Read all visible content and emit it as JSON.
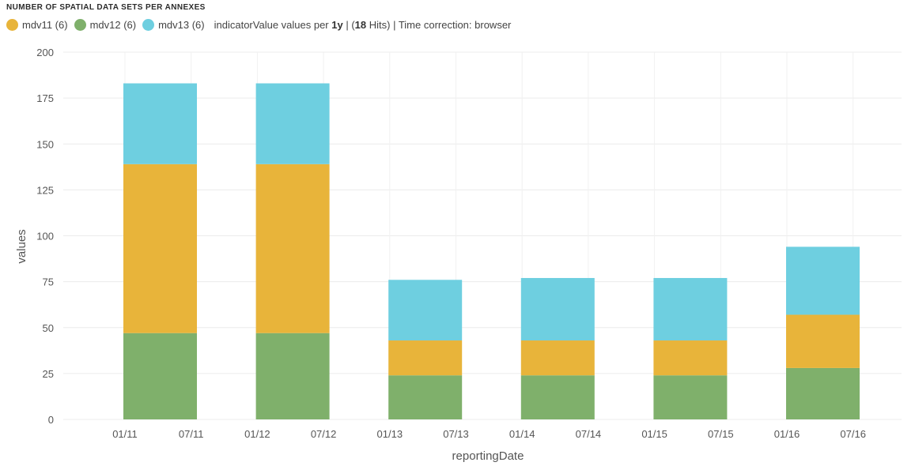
{
  "header": {
    "title": "NUMBER OF SPATIAL DATA SETS PER ANNEXES"
  },
  "legend": {
    "items": [
      {
        "label": "mdv11 (6)",
        "color": "#e8b43a"
      },
      {
        "label": "mdv12 (6)",
        "color": "#7fb06b"
      },
      {
        "label": "mdv13 (6)",
        "color": "#6ecfe0"
      }
    ],
    "meta_prefix": "indicatorValue values per ",
    "meta_interval": "1y",
    "meta_mid": " | (",
    "meta_hits": "18",
    "meta_suffix": " Hits) | Time correction: browser"
  },
  "chart_data": {
    "type": "bar",
    "stacked": true,
    "categories": [
      "2011",
      "2012",
      "2013",
      "2014",
      "2015",
      "2016"
    ],
    "series": [
      {
        "name": "mdv12 (6)",
        "color": "#7fb06b",
        "values": [
          47,
          47,
          24,
          24,
          24,
          28
        ]
      },
      {
        "name": "mdv11 (6)",
        "color": "#e8b43a",
        "values": [
          92,
          92,
          19,
          19,
          19,
          29
        ]
      },
      {
        "name": "mdv13 (6)",
        "color": "#6ecfe0",
        "values": [
          44,
          44,
          33,
          34,
          34,
          37
        ]
      }
    ],
    "xlabel": "reportingDate",
    "ylabel": "values",
    "ylim": [
      0,
      200
    ],
    "yticks": [
      0,
      25,
      50,
      75,
      100,
      125,
      150,
      175,
      200
    ],
    "xtick_labels": [
      "01/11",
      "07/11",
      "01/12",
      "07/12",
      "01/13",
      "07/13",
      "01/14",
      "07/14",
      "01/15",
      "07/15",
      "01/16",
      "07/16"
    ],
    "grid": true
  }
}
